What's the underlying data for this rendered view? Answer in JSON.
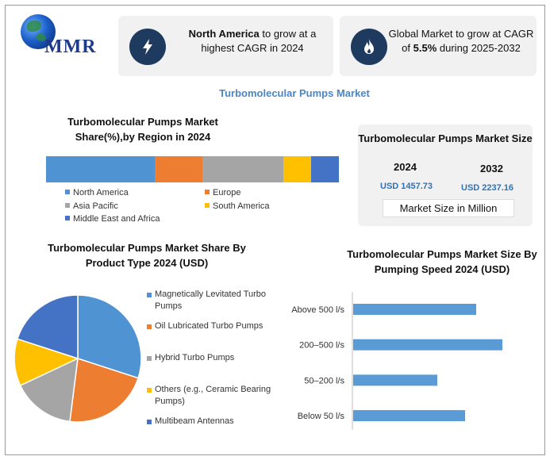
{
  "brand": {
    "logo_text": "MMR"
  },
  "cards": [
    {
      "bold": "North America",
      "text": " to grow at a highest CAGR in 2024",
      "icon": "lightning-icon"
    },
    {
      "pre": "Global Market to grow at CAGR of ",
      "bold": "5.5%",
      "post": " during 2025-2032",
      "icon": "flame-icon"
    }
  ],
  "main_title": "Turbomolecular Pumps Market",
  "market_size": {
    "title": "Turbomolecular Pumps Market Size",
    "year1": "2024",
    "value1": "USD 1457.73",
    "year2": "2032",
    "value2": "USD 2237.16",
    "unit": "Market Size in Million"
  },
  "colors": {
    "blue": "#4f93d2",
    "orange": "#ed7d31",
    "gray": "#a5a5a5",
    "yellow": "#ffc000",
    "darkblue": "#4472c4",
    "bar": "#5b9bd5"
  },
  "chart_data": [
    {
      "type": "bar",
      "orientation": "stacked-horizontal",
      "title": "Turbomolecular Pumps Market Share(%),by Region in 2024",
      "categories": [
        "North America",
        "Europe",
        "Asia Pacific",
        "South America",
        "Middle East and Africa"
      ],
      "values": [
        37,
        16.5,
        27.5,
        9.5,
        9.5
      ]
    },
    {
      "type": "pie",
      "title": "Turbomolecular Pumps Market Share By Product Type 2024  (USD)",
      "categories": [
        "Magnetically Levitated Turbo Pumps",
        "Oil Lubricated Turbo Pumps",
        "Hybrid Turbo Pumps",
        "Others (e.g., Ceramic Bearing Pumps)",
        "Multibeam Antennas"
      ],
      "values": [
        30,
        22,
        16,
        12,
        20
      ]
    },
    {
      "type": "bar",
      "orientation": "horizontal",
      "title": "Turbomolecular Pumps Market Size By Pumping Speed  2024  (USD)",
      "categories": [
        "Above 500 l/s",
        "200–500 l/s",
        "50–200 l/s",
        "Below 50 l/s"
      ],
      "values": [
        155,
        188,
        106,
        141
      ]
    }
  ]
}
